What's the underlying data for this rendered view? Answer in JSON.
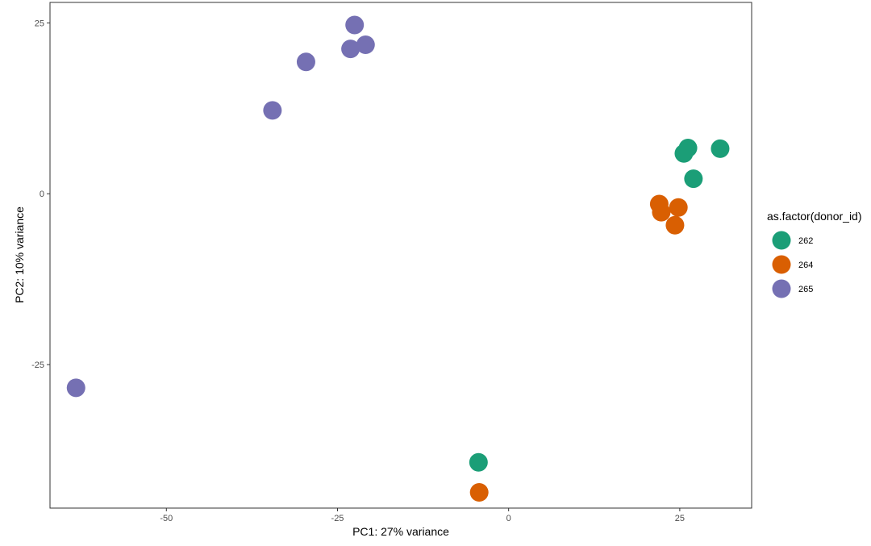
{
  "chart_data": {
    "type": "scatter",
    "title": "",
    "xlabel": "PC1: 27% variance",
    "ylabel": "PC2: 10% variance",
    "xlim": [
      -67,
      35.5
    ],
    "ylim": [
      -46,
      28
    ],
    "x_ticks": [
      -50,
      -25,
      0,
      25
    ],
    "y_ticks": [
      -25,
      0,
      25
    ],
    "grid": false,
    "legend": {
      "title": "as.factor(donor_id)",
      "position": "right"
    },
    "series": [
      {
        "name": "262",
        "color": "#1b9e77",
        "points": [
          {
            "x": 26.2,
            "y": 6.7
          },
          {
            "x": 25.6,
            "y": 5.9
          },
          {
            "x": 30.9,
            "y": 6.6
          },
          {
            "x": 27.0,
            "y": 2.2
          },
          {
            "x": -4.4,
            "y": -39.3
          }
        ]
      },
      {
        "name": "264",
        "color": "#d95f02",
        "points": [
          {
            "x": 22.0,
            "y": -1.5
          },
          {
            "x": 22.3,
            "y": -2.7
          },
          {
            "x": 24.8,
            "y": -2.0
          },
          {
            "x": 24.3,
            "y": -4.6
          },
          {
            "x": -4.3,
            "y": -43.7
          }
        ]
      },
      {
        "name": "265",
        "color": "#7570b3",
        "points": [
          {
            "x": -22.5,
            "y": 24.7
          },
          {
            "x": -23.1,
            "y": 21.2
          },
          {
            "x": -20.9,
            "y": 21.8
          },
          {
            "x": -29.6,
            "y": 19.3
          },
          {
            "x": -34.5,
            "y": 12.2
          },
          {
            "x": -63.2,
            "y": -28.4
          }
        ]
      }
    ]
  }
}
